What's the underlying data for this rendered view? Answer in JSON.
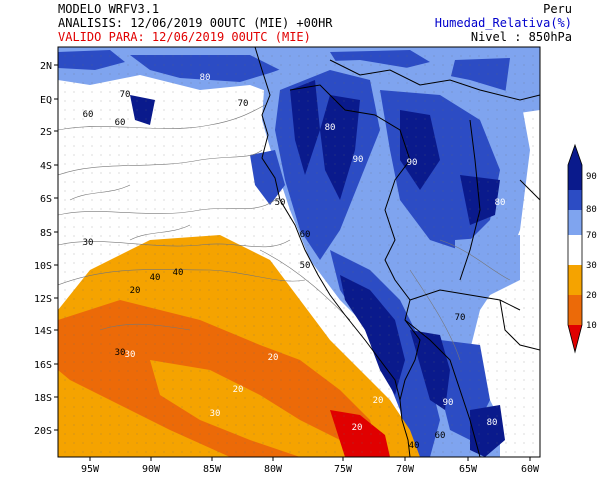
{
  "header": {
    "model": "MODELO WRFV3.1",
    "analysis": "ANALISIS: 12/06/2019 00UTC (MIE) +00HR",
    "valid": "VALIDO PARA: 12/06/2019 00UTC (MIE)",
    "region": "Peru",
    "variable": "Humedad_Relativa(%)",
    "level": "Nivel : 850hPa"
  },
  "axes": {
    "lon_ticks": [
      "95W",
      "90W",
      "85W",
      "80W",
      "75W",
      "70W",
      "65W",
      "60W"
    ],
    "lat_ticks": [
      "2N",
      "EQ",
      "2S",
      "4S",
      "6S",
      "8S",
      "10S",
      "12S",
      "14S",
      "16S",
      "18S",
      "20S"
    ]
  },
  "legend": {
    "labels": [
      "90",
      "80",
      "70",
      "30",
      "20",
      "10"
    ],
    "colors": {
      "c90": "#0a1a8c",
      "c80": "#2c4cc4",
      "c70": "#7fa4ef",
      "c_mid": "#ffffff",
      "c30": "#f5a300",
      "c20": "#ec6a08",
      "c10": "#e00000"
    }
  },
  "contour_labels": [
    "80",
    "70",
    "60",
    "50",
    "40",
    "30",
    "20",
    "80",
    "70",
    "60",
    "90",
    "90",
    "80",
    "30",
    "20",
    "20",
    "30",
    "20",
    "90",
    "80",
    "60",
    "40",
    "50",
    "70",
    "60",
    "40",
    "30",
    "20"
  ]
}
